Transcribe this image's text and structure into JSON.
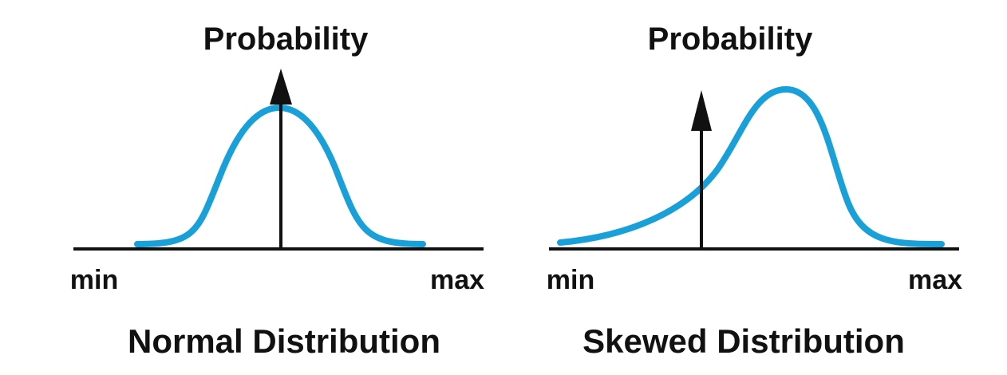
{
  "colors": {
    "curve": "#1aa0d8",
    "axis": "#111111",
    "background": "#ffffff"
  },
  "panels": [
    {
      "y_label": "Probability",
      "x_min_label": "min",
      "x_max_label": "max",
      "caption": "Normal Distribution",
      "shape": "normal"
    },
    {
      "y_label": "Probability",
      "x_min_label": "min",
      "x_max_label": "max",
      "caption": "Skewed Distribution",
      "shape": "right-peaked skewed"
    }
  ]
}
